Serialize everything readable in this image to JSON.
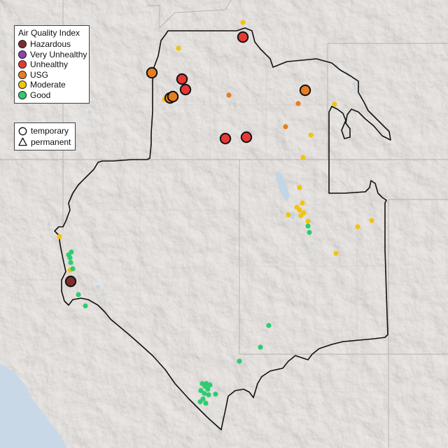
{
  "legend_aqi": {
    "title": "Air Quality Index",
    "items": [
      {
        "label": "Hazardous",
        "color": "#7e2d2d"
      },
      {
        "label": "Very Unhealthy",
        "color": "#8e44ad"
      },
      {
        "label": "Unhealthy",
        "color": "#e53935"
      },
      {
        "label": "USG",
        "color": "#e67e22"
      },
      {
        "label": "Moderate",
        "color": "#f1c40f"
      },
      {
        "label": "Good",
        "color": "#2ecc71"
      }
    ]
  },
  "legend_monitor": {
    "items": [
      {
        "label": "temporary",
        "shape": "circle"
      },
      {
        "label": "permanent",
        "shape": "triangle"
      }
    ]
  }
}
